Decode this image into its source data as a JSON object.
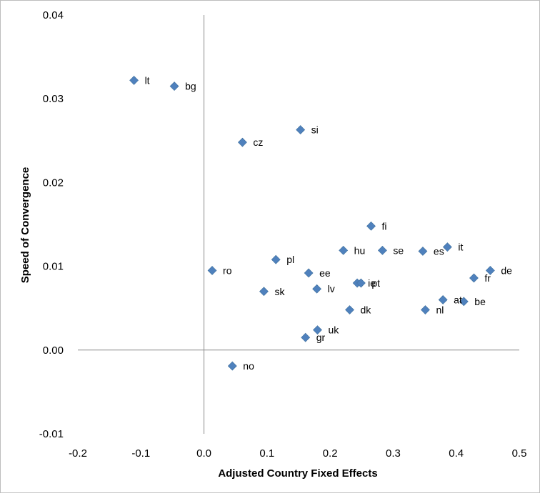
{
  "chart_data": {
    "type": "scatter",
    "xlabel": "Adjusted Country Fixed Effects",
    "ylabel": "Speed  of Convergence",
    "xlim": [
      -0.2,
      0.5
    ],
    "ylim": [
      -0.01,
      0.04
    ],
    "x_ticks": [
      "-0.2",
      "-0.1",
      "0.0",
      "0.1",
      "0.2",
      "0.3",
      "0.4",
      "0.5"
    ],
    "y_ticks": [
      "-0.01",
      "0.00",
      "0.01",
      "0.02",
      "0.03",
      "0.04"
    ],
    "grid": false,
    "marker_color": "#4f81bd",
    "points": [
      {
        "label": "lt",
        "x": -0.111,
        "y": 0.0322
      },
      {
        "label": "bg",
        "x": -0.047,
        "y": 0.0315
      },
      {
        "label": "si",
        "x": 0.153,
        "y": 0.0263
      },
      {
        "label": "cz",
        "x": 0.061,
        "y": 0.0248
      },
      {
        "label": "fi",
        "x": 0.265,
        "y": 0.0148
      },
      {
        "label": "hu",
        "x": 0.221,
        "y": 0.0119
      },
      {
        "label": "se",
        "x": 0.283,
        "y": 0.0119
      },
      {
        "label": "es",
        "x": 0.347,
        "y": 0.0118
      },
      {
        "label": "it",
        "x": 0.386,
        "y": 0.0123
      },
      {
        "label": "pl",
        "x": 0.114,
        "y": 0.0108
      },
      {
        "label": "ro",
        "x": 0.013,
        "y": 0.0095
      },
      {
        "label": "ee",
        "x": 0.166,
        "y": 0.0092
      },
      {
        "label": "de",
        "x": 0.454,
        "y": 0.0095
      },
      {
        "label": "fr",
        "x": 0.428,
        "y": 0.0086
      },
      {
        "label": "ie",
        "x": 0.243,
        "y": 0.008
      },
      {
        "label": "pt",
        "x": 0.249,
        "y": 0.008
      },
      {
        "label": "lv",
        "x": 0.179,
        "y": 0.0073
      },
      {
        "label": "sk",
        "x": 0.095,
        "y": 0.007
      },
      {
        "label": "at",
        "x": 0.379,
        "y": 0.006
      },
      {
        "label": "be",
        "x": 0.412,
        "y": 0.0058
      },
      {
        "label": "nl",
        "x": 0.351,
        "y": 0.0048
      },
      {
        "label": "dk",
        "x": 0.231,
        "y": 0.0048
      },
      {
        "label": "uk",
        "x": 0.18,
        "y": 0.0024
      },
      {
        "label": "gr",
        "x": 0.161,
        "y": 0.0015
      },
      {
        "label": "no",
        "x": 0.045,
        "y": -0.0019
      }
    ]
  }
}
